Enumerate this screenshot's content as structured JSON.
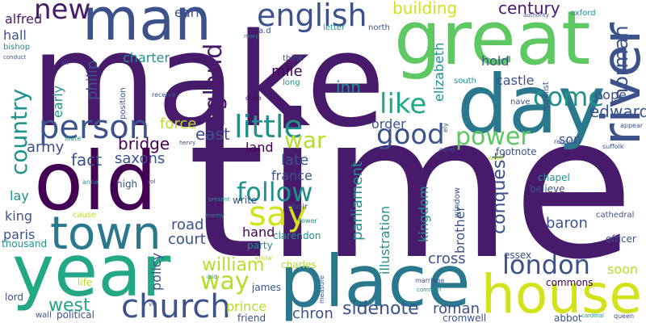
{
  "title": "word cloud",
  "words": [
    {
      "id": "time",
      "text": "time",
      "color": "#481a6c"
    },
    {
      "id": "make",
      "text": "make",
      "color": "#481a6c"
    },
    {
      "id": "great",
      "text": "great",
      "color": "#5ec962"
    },
    {
      "id": "day",
      "text": "day",
      "color": "#2a788e"
    },
    {
      "id": "old",
      "text": "old",
      "color": "#440154"
    },
    {
      "id": "year",
      "text": "year",
      "color": "#22a884"
    },
    {
      "id": "place",
      "text": "place",
      "color": "#2a788e"
    },
    {
      "id": "house",
      "text": "house",
      "color": "#d2e21b"
    },
    {
      "id": "town",
      "text": "town",
      "color": "#2a788e"
    },
    {
      "id": "man",
      "text": "man",
      "color": "#3b528b"
    },
    {
      "id": "river",
      "text": "river",
      "color": "#3b528b"
    },
    {
      "id": "person",
      "text": "person",
      "color": "#3b528b"
    },
    {
      "id": "church",
      "text": "church",
      "color": "#3b528b"
    },
    {
      "id": "english",
      "text": "english",
      "color": "#3b528b"
    },
    {
      "id": "london",
      "text": "london",
      "color": "#3b528b"
    },
    {
      "id": "country",
      "text": "country",
      "color": "#21918c"
    },
    {
      "id": "say",
      "text": "say",
      "color": "#d2e21b"
    },
    {
      "id": "little",
      "text": "little",
      "color": "#21918c"
    },
    {
      "id": "follow",
      "text": "follow",
      "color": "#21918c"
    },
    {
      "id": "england",
      "text": "england",
      "color": "#481a6c"
    },
    {
      "id": "come",
      "text": "come",
      "color": "#21918c"
    },
    {
      "id": "good",
      "text": "good",
      "color": "#3b528b"
    },
    {
      "id": "power",
      "text": "power",
      "color": "#5ec962"
    },
    {
      "id": "like",
      "text": "like",
      "color": "#22a884"
    },
    {
      "id": "war",
      "text": "war",
      "color": "#b5de2b"
    },
    {
      "id": "new",
      "text": "new",
      "color": "#481a6c"
    },
    {
      "id": "way",
      "text": "way",
      "color": "#b5de2b"
    },
    {
      "id": "norman",
      "text": "norman",
      "color": "#3b528b"
    },
    {
      "id": "william",
      "text": "william",
      "color": "#b5de2b"
    },
    {
      "id": "west",
      "text": "west",
      "color": "#22a884"
    },
    {
      "id": "sidenote",
      "text": "sidenote",
      "color": "#3b528b"
    },
    {
      "id": "conquest",
      "text": "conquest",
      "color": "#3b528b"
    },
    {
      "id": "edward",
      "text": "edward",
      "color": "#3b528b"
    },
    {
      "id": "building",
      "text": "building",
      "color": "#d2e21b"
    },
    {
      "id": "century",
      "text": "century",
      "color": "#481a6c"
    },
    {
      "id": "bridge",
      "text": "bridge",
      "color": "#440154"
    },
    {
      "id": "army",
      "text": "army",
      "color": "#3b528b"
    },
    {
      "id": "fact",
      "text": "fact",
      "color": "#3b528b"
    },
    {
      "id": "saxons",
      "text": "saxons",
      "color": "#3b528b"
    },
    {
      "id": "east",
      "text": "east",
      "color": "#3b528b"
    },
    {
      "id": "force",
      "text": "force",
      "color": "#b5de2b"
    },
    {
      "id": "land",
      "text": "land",
      "color": "#440154"
    },
    {
      "id": "france",
      "text": "france",
      "color": "#3b528b"
    },
    {
      "id": "hand",
      "text": "hand",
      "color": "#440154"
    },
    {
      "id": "road",
      "text": "road",
      "color": "#3b528b"
    },
    {
      "id": "court",
      "text": "court",
      "color": "#3b528b"
    },
    {
      "id": "king",
      "text": "king",
      "color": "#3b528b"
    },
    {
      "id": "paris",
      "text": "paris",
      "color": "#3b528b"
    },
    {
      "id": "lay",
      "text": "lay",
      "color": "#21918c"
    },
    {
      "id": "mile",
      "text": "mile",
      "color": "#440154"
    },
    {
      "id": "inn",
      "text": "inn",
      "color": "#21918c"
    },
    {
      "id": "late",
      "text": "late",
      "color": "#3b528b"
    },
    {
      "id": "order",
      "text": "order",
      "color": "#3b528b"
    },
    {
      "id": "parliament",
      "text": "parliament",
      "color": "#21918c"
    },
    {
      "id": "illustration",
      "text": "illustration",
      "color": "#21918c"
    },
    {
      "id": "kingdom",
      "text": "kingdom",
      "color": "#21918c"
    },
    {
      "id": "brother",
      "text": "brother",
      "color": "#3b528b"
    },
    {
      "id": "cross",
      "text": "cross",
      "color": "#3b528b"
    },
    {
      "id": "roman",
      "text": "roman",
      "color": "#3b528b"
    },
    {
      "id": "chron",
      "text": "chron",
      "color": "#3b528b"
    },
    {
      "id": "prince",
      "text": "prince",
      "color": "#b5de2b"
    },
    {
      "id": "soon",
      "text": "soon",
      "color": "#b5de2b"
    },
    {
      "id": "baron",
      "text": "baron",
      "color": "#3b528b"
    },
    {
      "id": "pope",
      "text": "pope",
      "color": "#3b528b"
    },
    {
      "id": "son",
      "text": "son",
      "color": "#3b528b"
    },
    {
      "id": "castle",
      "text": "castle",
      "color": "#3b528b"
    },
    {
      "id": "hold",
      "text": "hold",
      "color": "#3b528b"
    },
    {
      "id": "elizabeth",
      "text": "elizabeth",
      "color": "#21918c"
    },
    {
      "id": "charter",
      "text": "charter",
      "color": "#21918c"
    },
    {
      "id": "philip",
      "text": "philip",
      "color": "#3b528b"
    },
    {
      "id": "early",
      "text": "early",
      "color": "#21918c"
    },
    {
      "id": "alfred",
      "text": "alfred",
      "color": "#481a6c"
    },
    {
      "id": "hall",
      "text": "hall",
      "color": "#3b528b"
    },
    {
      "id": "bishop",
      "text": "bishop",
      "color": "#21918c"
    },
    {
      "id": "earl",
      "text": "earl",
      "color": "#3b528b"
    },
    {
      "id": "policy",
      "text": "policy",
      "color": "#3b528b"
    },
    {
      "id": "political",
      "text": "political",
      "color": "#3b528b"
    },
    {
      "id": "thousand",
      "text": "thousand",
      "color": "#21918c"
    },
    {
      "id": "lord",
      "text": "lord",
      "color": "#3b528b"
    },
    {
      "id": "life",
      "text": "life",
      "color": "#b5de2b"
    },
    {
      "id": "james",
      "text": "james",
      "color": "#3b528b"
    },
    {
      "id": "friend",
      "text": "friend",
      "color": "#3b528b"
    },
    {
      "id": "party",
      "text": "party",
      "color": "#21918c"
    },
    {
      "id": "clarendon",
      "text": "clarendon",
      "color": "#21918c"
    },
    {
      "id": "charles",
      "text": "charles",
      "color": "#b5de2b"
    },
    {
      "id": "essex",
      "text": "essex",
      "color": "#3b528b"
    },
    {
      "id": "commons",
      "text": "commons",
      "color": "#440154"
    },
    {
      "id": "cromwell",
      "text": "cromwell",
      "color": "#3b528b"
    },
    {
      "id": "abbot",
      "text": "abbot",
      "color": "#3b528b"
    },
    {
      "id": "officer",
      "text": "officer",
      "color": "#3b528b"
    },
    {
      "id": "cathedral",
      "text": "cathedral",
      "color": "#3b528b"
    },
    {
      "id": "believe",
      "text": "believe",
      "color": "#3b528b"
    },
    {
      "id": "chapel",
      "text": "chapel",
      "color": "#21918c"
    },
    {
      "id": "footnote",
      "text": "footnote",
      "color": "#3b528b"
    },
    {
      "id": "write",
      "text": "write",
      "color": "#3b528b"
    },
    {
      "id": "high",
      "text": "high",
      "color": "#3b528b"
    },
    {
      "id": "oxford",
      "text": "oxford",
      "color": "#21918c"
    },
    {
      "id": "authority",
      "text": "authority",
      "color": "#3b528b"
    },
    {
      "id": "nave",
      "text": "nave",
      "color": "#3b528b"
    },
    {
      "id": "royalist",
      "text": "royalist",
      "color": "#3b528b"
    },
    {
      "id": "south",
      "text": "south",
      "color": "#21918c"
    },
    {
      "id": "window",
      "text": "window",
      "color": "#3b528b"
    },
    {
      "id": "choir",
      "text": "choir",
      "color": "#3b528b"
    },
    {
      "id": "tower",
      "text": "tower",
      "color": "#21918c"
    },
    {
      "id": "know",
      "text": "know",
      "color": "#b5de2b"
    },
    {
      "id": "think",
      "text": "think",
      "color": "#3b528b"
    },
    {
      "id": "long",
      "text": "long",
      "color": "#21918c"
    },
    {
      "id": "letter",
      "text": "letter",
      "color": "#21918c"
    },
    {
      "id": "north",
      "text": "north",
      "color": "#3b528b"
    },
    {
      "id": "ad",
      "text": "a.d",
      "color": "#3b528b"
    },
    {
      "id": "position",
      "text": "position",
      "color": "#3b528b"
    },
    {
      "id": "cause",
      "text": "cause",
      "color": "#b5de2b"
    },
    {
      "id": "marriage",
      "text": "marriage",
      "color": "#3b528b"
    },
    {
      "id": "measure",
      "text": "measure",
      "color": "#3b528b"
    },
    {
      "id": "ely",
      "text": "ely",
      "color": "#3b528b"
    },
    {
      "id": "send",
      "text": "send",
      "color": "#3b528b"
    },
    {
      "id": "work",
      "text": "work",
      "color": "#b5de2b"
    },
    {
      "id": "regard",
      "text": "regard",
      "color": "#3b528b"
    },
    {
      "id": "suffolk",
      "text": "suffolk",
      "color": "#3b528b"
    },
    {
      "id": "appear",
      "text": "appear",
      "color": "#3b528b"
    },
    {
      "id": "duke",
      "text": "duke",
      "color": "#440154"
    },
    {
      "id": "state",
      "text": "state",
      "color": "#21918c"
    },
    {
      "id": "henry",
      "text": "henry",
      "color": "#3b528b"
    },
    {
      "id": "anne",
      "text": "anne",
      "color": "#21918c"
    },
    {
      "id": "receive",
      "text": "receive",
      "color": "#3b528b"
    },
    {
      "id": "sir",
      "text": "sir",
      "color": "#3b528b"
    },
    {
      "id": "conduct",
      "text": "conduct",
      "color": "#3b528b"
    },
    {
      "id": "mary",
      "text": "mary",
      "color": "#21918c"
    },
    {
      "id": "wall",
      "text": "wall",
      "color": "#3b528b"
    },
    {
      "id": "present",
      "text": "present",
      "color": "#21918c"
    },
    {
      "id": "enemy",
      "text": "enemy",
      "color": "#21918c"
    },
    {
      "id": "common",
      "text": "common",
      "color": "#21918c"
    },
    {
      "id": "queen",
      "text": "queen",
      "color": "#3b528b"
    },
    {
      "id": "cardinal",
      "text": "cardinal",
      "color": "#21918c"
    },
    {
      "id": "vol",
      "text": "vol",
      "color": "#3b528b"
    },
    {
      "id": "viii",
      "text": "viii",
      "color": "#3b528b"
    },
    {
      "id": "ibid",
      "text": "ibid",
      "color": "#21918c"
    }
  ]
}
